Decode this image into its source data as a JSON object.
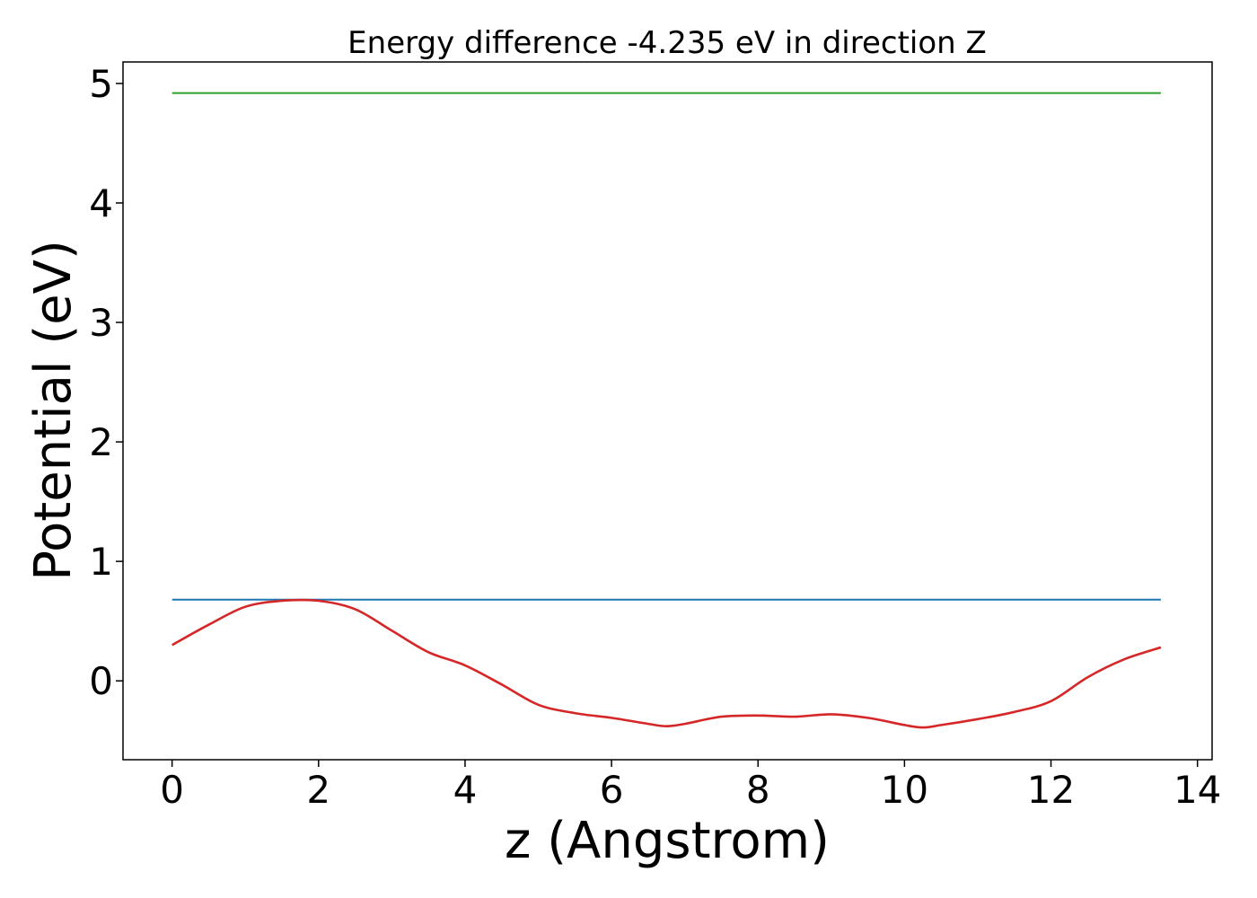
{
  "chart_data": {
    "type": "line",
    "title": "Energy difference -4.235 eV in direction Z",
    "xlabel": "z (Angstrom)",
    "ylabel": "Potential (eV)",
    "xlim": [
      -0.67,
      14.2
    ],
    "ylim": [
      -0.66,
      5.18
    ],
    "xticks": [
      0,
      2,
      4,
      6,
      8,
      10,
      12,
      14
    ],
    "yticks": [
      0,
      1,
      2,
      3,
      4,
      5
    ],
    "grid": false,
    "legend": "none",
    "series": [
      {
        "color": "#2ca02c",
        "x": [
          0,
          13.5
        ],
        "y": [
          4.92,
          4.92
        ]
      },
      {
        "color": "#1f77b4",
        "x": [
          0,
          13.5
        ],
        "y": [
          0.68,
          0.68
        ]
      },
      {
        "color": "#d62728",
        "x": [
          0,
          0.5,
          1.0,
          1.5,
          2.0,
          2.5,
          3.0,
          3.5,
          4.0,
          4.5,
          5.0,
          5.5,
          6.0,
          6.5,
          6.75,
          7.0,
          7.5,
          8.0,
          8.5,
          9.0,
          9.5,
          10.0,
          10.25,
          10.5,
          11.0,
          11.5,
          12.0,
          12.5,
          13.0,
          13.5
        ],
        "y": [
          0.3,
          0.47,
          0.62,
          0.67,
          0.67,
          0.6,
          0.42,
          0.24,
          0.13,
          -0.03,
          -0.2,
          -0.27,
          -0.31,
          -0.36,
          -0.38,
          -0.36,
          -0.3,
          -0.29,
          -0.3,
          -0.28,
          -0.31,
          -0.37,
          -0.39,
          -0.37,
          -0.32,
          -0.26,
          -0.17,
          0.03,
          0.18,
          0.28
        ]
      }
    ]
  }
}
